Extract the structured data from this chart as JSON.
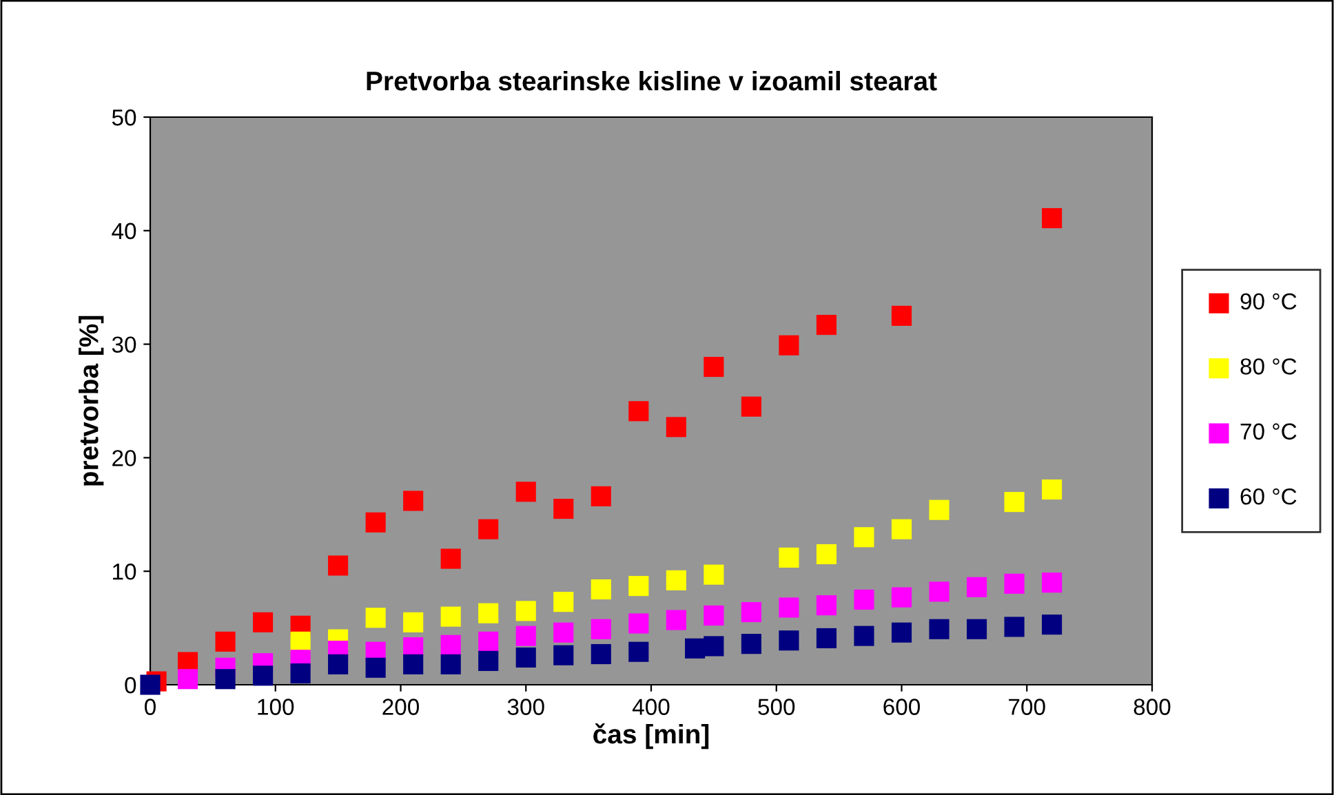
{
  "chart_data": {
    "type": "scatter",
    "title": "Pretvorba stearinske kisline v izoamil stearat",
    "xlabel": "čas [min]",
    "ylabel": "pretvorba [%]",
    "xlim": [
      0,
      800
    ],
    "xticks": [
      0,
      100,
      200,
      300,
      400,
      500,
      600,
      700,
      800
    ],
    "ylim": [
      0,
      50
    ],
    "yticks": [
      0,
      10,
      20,
      30,
      40,
      50
    ],
    "grid": false,
    "legend": "right",
    "marker": "square",
    "series": [
      {
        "name": "90 °C",
        "color": "#ff0000",
        "x": [
          5,
          30,
          60,
          90,
          120,
          150,
          180,
          210,
          240,
          270,
          300,
          330,
          360,
          390,
          420,
          450,
          480,
          510,
          540,
          600,
          720
        ],
        "values": [
          0.3,
          2.0,
          3.8,
          5.5,
          5.2,
          10.5,
          14.3,
          16.2,
          11.1,
          13.7,
          17.0,
          15.5,
          16.6,
          24.1,
          22.7,
          28.0,
          24.5,
          29.9,
          31.7,
          32.5,
          41.1
        ]
      },
      {
        "name": "80 °C",
        "color": "#ffff00",
        "x": [
          120,
          150,
          180,
          210,
          240,
          270,
          300,
          330,
          360,
          390,
          420,
          450,
          510,
          540,
          570,
          600,
          630,
          690,
          720
        ],
        "values": [
          3.8,
          4.0,
          5.9,
          5.5,
          6.0,
          6.3,
          6.5,
          7.3,
          8.4,
          8.7,
          9.2,
          9.7,
          11.2,
          11.5,
          13.0,
          13.7,
          15.4,
          16.1,
          17.2
        ]
      },
      {
        "name": "70 °C",
        "color": "#ff00ff",
        "x": [
          30,
          60,
          90,
          120,
          150,
          180,
          210,
          240,
          270,
          300,
          330,
          360,
          390,
          420,
          450,
          480,
          510,
          540,
          570,
          600,
          630,
          660,
          690,
          720
        ],
        "values": [
          0.5,
          1.5,
          1.9,
          2.2,
          3.0,
          2.9,
          3.3,
          3.5,
          3.8,
          4.3,
          4.6,
          4.9,
          5.4,
          5.7,
          6.1,
          6.4,
          6.8,
          7.0,
          7.5,
          7.7,
          8.2,
          8.6,
          8.9,
          9.0
        ]
      },
      {
        "name": "60 °C",
        "color": "#000080",
        "x": [
          0,
          60,
          90,
          120,
          150,
          180,
          210,
          240,
          270,
          300,
          330,
          360,
          390,
          435,
          450,
          480,
          510,
          540,
          570,
          600,
          630,
          660,
          690,
          720
        ],
        "values": [
          0,
          0.5,
          0.8,
          1.0,
          1.8,
          1.5,
          1.8,
          1.8,
          2.1,
          2.4,
          2.6,
          2.7,
          2.9,
          3.2,
          3.4,
          3.6,
          3.9,
          4.1,
          4.3,
          4.6,
          4.9,
          4.9,
          5.1,
          5.3
        ]
      }
    ]
  }
}
